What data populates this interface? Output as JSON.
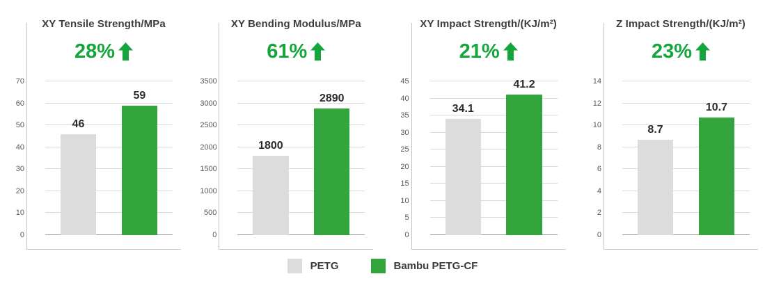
{
  "colors": {
    "bar_gray": "#dcdcdc",
    "bar_green": "#34a53d",
    "accent_green": "#14a53c",
    "gridline": "#d9d9d9",
    "baseline": "#a6a6a6",
    "frame": "#c4c4c4"
  },
  "legend": {
    "items": [
      {
        "label": "PETG",
        "color": "#dcdcdc"
      },
      {
        "label": "Bambu PETG-CF",
        "color": "#34a53d"
      }
    ]
  },
  "chart_data": [
    {
      "type": "bar",
      "title": "XY Tensile Strength/MPa",
      "increase_label": "28%",
      "categories": [
        "PETG",
        "Bambu PETG-CF"
      ],
      "values": [
        46,
        59
      ],
      "value_labels": [
        "46",
        "59"
      ],
      "ylim": [
        0,
        70
      ],
      "yticks": [
        0,
        10,
        20,
        30,
        40,
        50,
        60,
        70
      ],
      "grid": true,
      "legend_position": "bottom-center"
    },
    {
      "type": "bar",
      "title": "XY Bending Modulus/MPa",
      "increase_label": "61%",
      "categories": [
        "PETG",
        "Bambu PETG-CF"
      ],
      "values": [
        1800,
        2890
      ],
      "value_labels": [
        "1800",
        "2890"
      ],
      "ylim": [
        0,
        3500
      ],
      "yticks": [
        0,
        500,
        1000,
        1500,
        2000,
        2500,
        3000,
        3500
      ],
      "grid": true,
      "legend_position": "bottom-center"
    },
    {
      "type": "bar",
      "title": "XY Impact Strength/(KJ/m²)",
      "increase_label": "21%",
      "categories": [
        "PETG",
        "Bambu PETG-CF"
      ],
      "values": [
        34.1,
        41.2
      ],
      "value_labels": [
        "34.1",
        "41.2"
      ],
      "ylim": [
        0,
        45
      ],
      "yticks": [
        0,
        5,
        10,
        15,
        20,
        25,
        30,
        35,
        40,
        45
      ],
      "grid": true,
      "legend_position": "bottom-center"
    },
    {
      "type": "bar",
      "title": "Z Impact Strength/(KJ/m²)",
      "increase_label": "23%",
      "categories": [
        "PETG",
        "Bambu PETG-CF"
      ],
      "values": [
        8.7,
        10.7
      ],
      "value_labels": [
        "8.7",
        "10.7"
      ],
      "ylim": [
        0,
        14
      ],
      "yticks": [
        0,
        2,
        4,
        6,
        8,
        10,
        12,
        14
      ],
      "grid": true,
      "legend_position": "bottom-center"
    }
  ]
}
